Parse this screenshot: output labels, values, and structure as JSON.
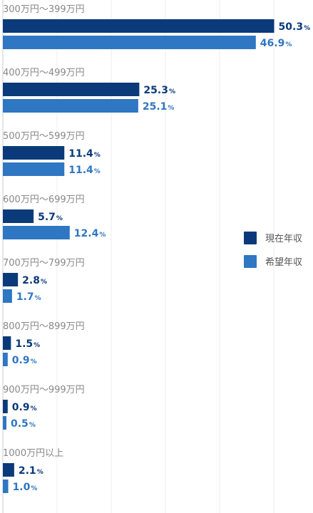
{
  "chart_data": {
    "type": "bar",
    "orientation": "horizontal",
    "categories": [
      "300万円～399万円",
      "400万円～499万円",
      "500万円～599万円",
      "600万円～699万円",
      "700万円～799万円",
      "800万円～899万円",
      "900万円～999万円",
      "1000万円以上"
    ],
    "series": [
      {
        "name": "現在年収",
        "color": "#0a3a7a",
        "values": [
          50.3,
          25.3,
          11.4,
          5.7,
          2.8,
          1.5,
          0.9,
          2.1
        ]
      },
      {
        "name": "希望年収",
        "color": "#2f76c3",
        "values": [
          46.9,
          25.1,
          11.4,
          12.4,
          1.7,
          0.9,
          0.5,
          1.0
        ]
      }
    ],
    "unit": "%",
    "xlim": [
      0,
      57.5
    ],
    "grid": true,
    "legend_position": "right"
  }
}
